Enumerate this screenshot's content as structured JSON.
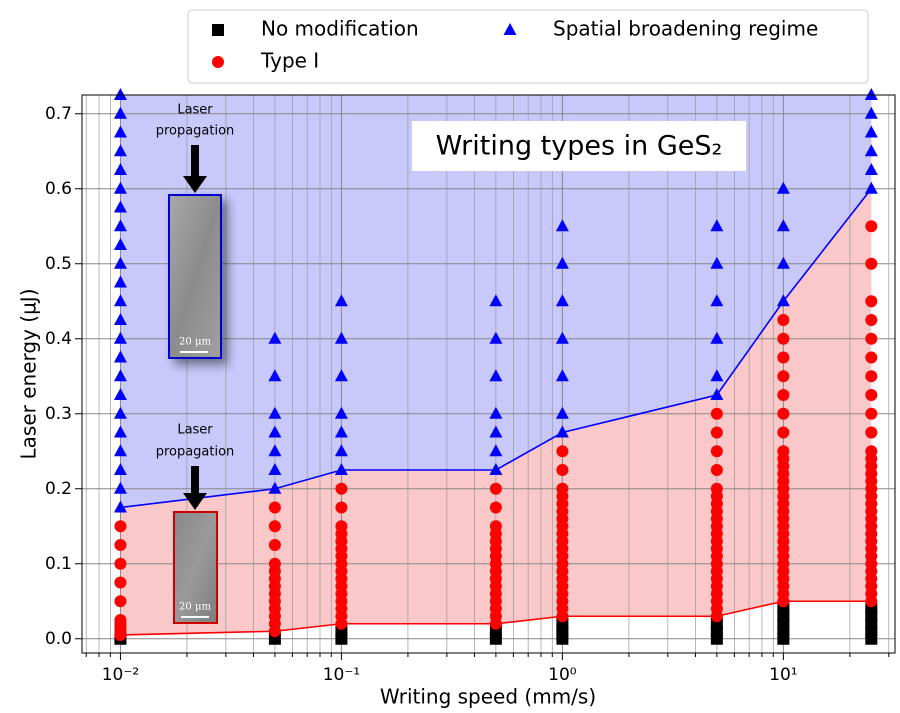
{
  "chart_data": {
    "type": "scatter",
    "title": "Writing types in GeS₂",
    "xlabel": "Writing speed (mm/s)",
    "ylabel": "Laser energy (µJ)",
    "xscale": "log",
    "xlim": [
      0.0067,
      32
    ],
    "ylim": [
      -0.019,
      0.725
    ],
    "xticks": [
      {
        "value": 0.01,
        "label": "10⁻²"
      },
      {
        "value": 0.1,
        "label": "10⁻¹"
      },
      {
        "value": 1,
        "label": "10⁰"
      },
      {
        "value": 10,
        "label": "10¹"
      }
    ],
    "xminorticks": [
      0.007,
      0.008,
      0.009,
      0.02,
      0.03,
      0.04,
      0.05,
      0.06,
      0.07,
      0.08,
      0.09,
      0.2,
      0.3,
      0.4,
      0.5,
      0.6,
      0.7,
      0.8,
      0.9,
      2,
      3,
      4,
      5,
      6,
      7,
      8,
      9,
      20,
      30
    ],
    "yticks": [
      {
        "value": 0,
        "label": "0.0"
      },
      0.1,
      0.2,
      0.3,
      0.4,
      0.5,
      0.6,
      0.7
    ],
    "grid": true,
    "legend": "upper center",
    "series": [
      {
        "name": "No modification",
        "color": "#000000",
        "marker": "square",
        "groups": [
          {
            "x": 0.01,
            "values": [
              0
            ]
          },
          {
            "x": 0.05,
            "values": [
              0
            ]
          },
          {
            "x": 0.1,
            "values": [
              0,
              0.01
            ]
          },
          {
            "x": 0.5,
            "values": [
              0,
              0.01
            ]
          },
          {
            "x": 1,
            "values": [
              0,
              0.01,
              0.02
            ]
          },
          {
            "x": 5,
            "values": [
              0,
              0.01,
              0.02
            ]
          },
          {
            "x": 10,
            "values": [
              0,
              0.01,
              0.02,
              0.03,
              0.04
            ]
          },
          {
            "x": 25,
            "values": [
              0,
              0.01,
              0.02,
              0.03,
              0.04
            ]
          }
        ]
      },
      {
        "name": "Type I",
        "color": "#ff0000",
        "marker": "circle",
        "groups": [
          {
            "x": 0.01,
            "values": [
              0.005,
              0.01,
              0.015,
              0.02,
              0.025,
              0.05,
              0.075,
              0.1,
              0.125,
              0.15
            ]
          },
          {
            "x": 0.05,
            "values": [
              0.01,
              0.02,
              0.03,
              0.04,
              0.05,
              0.06,
              0.07,
              0.08,
              0.09,
              0.1,
              0.125,
              0.15,
              0.175
            ]
          },
          {
            "x": 0.1,
            "values": [
              0.02,
              0.03,
              0.04,
              0.05,
              0.06,
              0.07,
              0.08,
              0.09,
              0.1,
              0.11,
              0.12,
              0.13,
              0.14,
              0.15,
              0.175,
              0.2
            ]
          },
          {
            "x": 0.5,
            "values": [
              0.02,
              0.03,
              0.04,
              0.05,
              0.06,
              0.07,
              0.08,
              0.09,
              0.1,
              0.11,
              0.12,
              0.13,
              0.14,
              0.15,
              0.175,
              0.2
            ]
          },
          {
            "x": 1,
            "values": [
              0.03,
              0.04,
              0.05,
              0.06,
              0.07,
              0.08,
              0.09,
              0.1,
              0.11,
              0.12,
              0.13,
              0.14,
              0.15,
              0.16,
              0.17,
              0.18,
              0.19,
              0.2,
              0.225,
              0.25
            ]
          },
          {
            "x": 5,
            "values": [
              0.03,
              0.04,
              0.05,
              0.06,
              0.07,
              0.08,
              0.09,
              0.1,
              0.11,
              0.12,
              0.13,
              0.14,
              0.15,
              0.16,
              0.17,
              0.18,
              0.19,
              0.2,
              0.225,
              0.25,
              0.275,
              0.3
            ]
          },
          {
            "x": 10,
            "values": [
              0.05,
              0.06,
              0.07,
              0.08,
              0.09,
              0.1,
              0.11,
              0.12,
              0.13,
              0.14,
              0.15,
              0.16,
              0.17,
              0.18,
              0.19,
              0.2,
              0.21,
              0.22,
              0.23,
              0.24,
              0.25,
              0.275,
              0.3,
              0.325,
              0.35,
              0.375,
              0.4,
              0.425
            ]
          },
          {
            "x": 25,
            "values": [
              0.05,
              0.06,
              0.07,
              0.08,
              0.09,
              0.1,
              0.11,
              0.12,
              0.13,
              0.14,
              0.15,
              0.16,
              0.17,
              0.18,
              0.19,
              0.2,
              0.21,
              0.22,
              0.23,
              0.24,
              0.25,
              0.275,
              0.3,
              0.325,
              0.35,
              0.375,
              0.4,
              0.425,
              0.45,
              0.5,
              0.55
            ]
          }
        ]
      },
      {
        "name": "Spatial broadening regime",
        "color": "#0000ff",
        "marker": "triangle",
        "groups": [
          {
            "x": 0.01,
            "values": [
              0.175,
              0.2,
              0.225,
              0.25,
              0.275,
              0.3,
              0.325,
              0.35,
              0.375,
              0.4,
              0.425,
              0.45,
              0.475,
              0.5,
              0.525,
              0.55,
              0.575,
              0.6,
              0.625,
              0.65,
              0.675,
              0.7,
              0.725
            ]
          },
          {
            "x": 0.05,
            "values": [
              0.2,
              0.225,
              0.25,
              0.275,
              0.3,
              0.35,
              0.4
            ]
          },
          {
            "x": 0.1,
            "values": [
              0.225,
              0.25,
              0.275,
              0.3,
              0.35,
              0.4,
              0.45
            ]
          },
          {
            "x": 0.5,
            "values": [
              0.225,
              0.25,
              0.275,
              0.3,
              0.35,
              0.4,
              0.45
            ]
          },
          {
            "x": 1,
            "values": [
              0.275,
              0.3,
              0.35,
              0.4,
              0.45,
              0.5,
              0.55
            ]
          },
          {
            "x": 5,
            "values": [
              0.325,
              0.35,
              0.4,
              0.45,
              0.5,
              0.55
            ]
          },
          {
            "x": 10,
            "values": [
              0.45,
              0.5,
              0.55,
              0.6
            ]
          },
          {
            "x": 25,
            "values": [
              0.6,
              0.625,
              0.65,
              0.675,
              0.7,
              0.725
            ]
          }
        ]
      }
    ],
    "boundaries": [
      {
        "color": "#0000ff",
        "fill": "#c8c8fa",
        "x": [
          0.01,
          0.05,
          0.1,
          0.5,
          1,
          5,
          10,
          25
        ],
        "values": [
          0.175,
          0.2,
          0.225,
          0.225,
          0.275,
          0.325,
          0.45,
          0.6
        ]
      },
      {
        "color": "#ff0000",
        "fill": "#fac8c8",
        "x": [
          0.01,
          0.05,
          0.1,
          0.5,
          1,
          5,
          10,
          25
        ],
        "values": [
          0.005,
          0.01,
          0.02,
          0.02,
          0.03,
          0.03,
          0.05,
          0.05
        ]
      }
    ],
    "annotations": [
      "Laser",
      "propagation",
      "20 μm",
      "Laser",
      "propagation",
      "20 μm"
    ]
  }
}
